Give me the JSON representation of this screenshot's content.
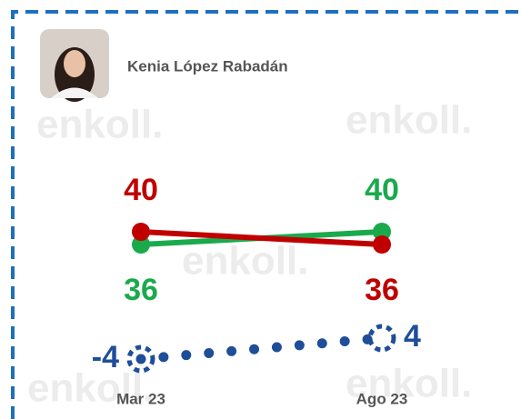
{
  "header": {
    "name": "Kenia López Rabadán",
    "watermark": "enkoll."
  },
  "chart_data": {
    "type": "line",
    "categories": [
      "Mar 23",
      "Ago 23"
    ],
    "series": [
      {
        "color": "#1aaa4c",
        "values": [
          36,
          40
        ]
      },
      {
        "color": "#c00000",
        "values": [
          40,
          36
        ]
      },
      {
        "color": "#1f4e99",
        "values": [
          -4,
          4
        ],
        "style": "dotted"
      }
    ]
  }
}
